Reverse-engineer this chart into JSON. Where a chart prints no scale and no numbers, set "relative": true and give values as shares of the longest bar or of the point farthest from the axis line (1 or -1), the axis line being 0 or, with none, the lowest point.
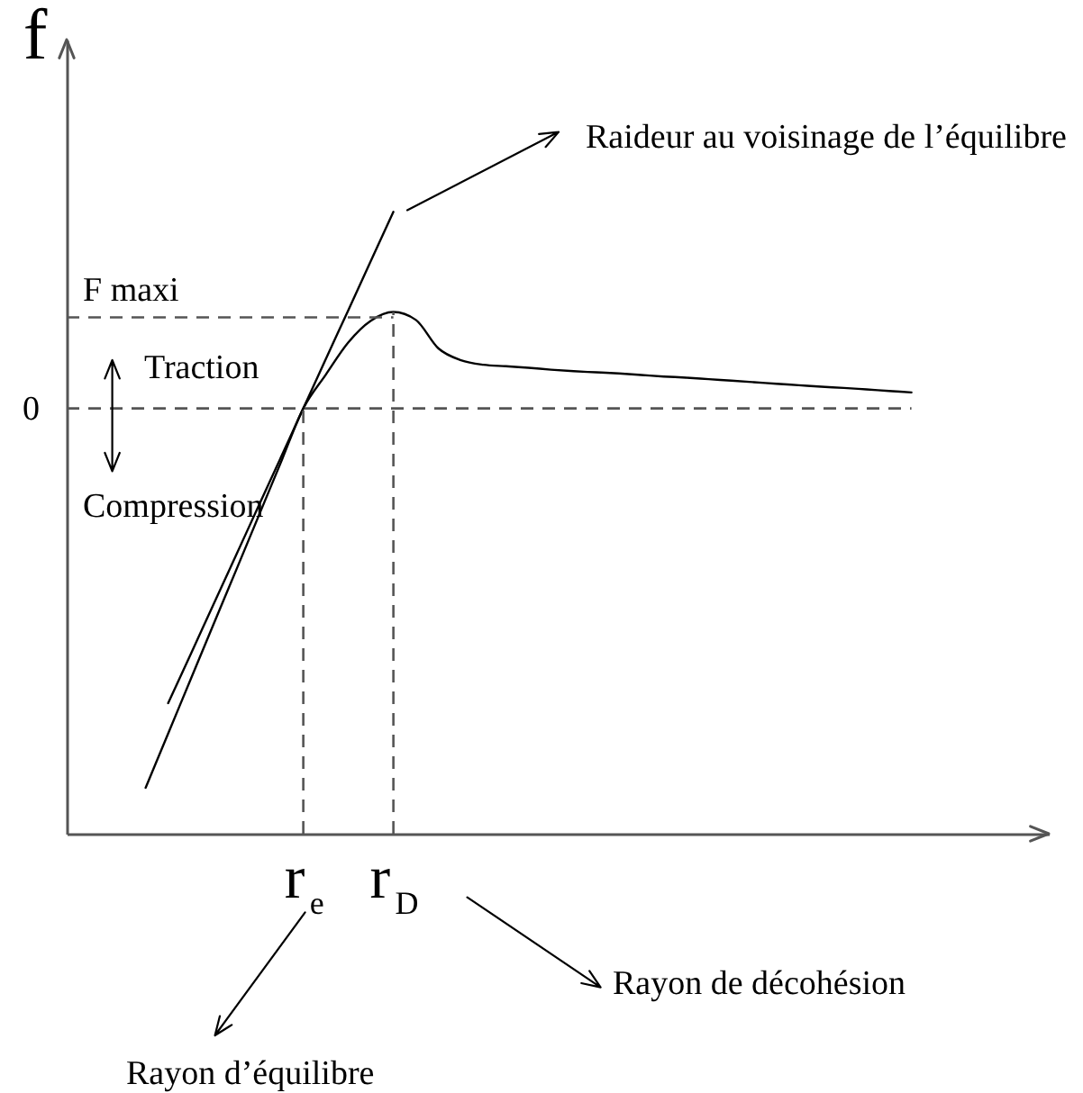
{
  "chart_data": {
    "type": "line",
    "relative": true,
    "ylabel": "f",
    "categories": [
      null,
      null,
      null,
      null,
      null,
      null,
      null,
      "r$_{e}$",
      null,
      null,
      null,
      "r$_{D}$",
      null,
      null,
      null,
      null,
      null,
      null,
      null,
      null,
      null,
      null,
      null,
      null,
      null,
      null,
      null,
      null,
      null,
      null,
      null,
      null,
      null,
      null,
      null
    ],
    "series": [
      {
        "color": "#000000",
        "values": [
          -1,
          -0.857,
          -0.714,
          -0.571,
          -0.429,
          -0.286,
          -0.143,
          0,
          0.089,
          0.174,
          0.231,
          0.254,
          0.233,
          0.158,
          0.127,
          0.115,
          0.111,
          0.107,
          0.102,
          0.098,
          0.095,
          0.092,
          0.088,
          0.084,
          0.081,
          0.077,
          0.073,
          0.069,
          0.065,
          0.061,
          0.057,
          0.054,
          0.05,
          0.046,
          0.042
        ]
      },
      {
        "color": "#000000",
        "values": [
          null,
          -0.777,
          -0.648,
          -0.518,
          -0.389,
          -0.259,
          -0.13,
          0,
          0.13,
          0.259,
          0.389,
          0.518,
          null,
          null,
          null,
          null,
          null,
          null,
          null,
          null,
          null,
          null,
          null,
          null,
          null,
          null,
          null,
          null,
          null,
          null,
          null,
          null,
          null,
          null,
          null
        ]
      }
    ],
    "ref_lines": [
      {
        "axis": "y",
        "value": 0,
        "label": "0",
        "color": "#555555",
        "line_style": "dashed"
      },
      {
        "axis": "y",
        "value": 0.24,
        "label": "F maxi",
        "color": "#555555",
        "line_style": "dashed"
      },
      {
        "axis": "x",
        "value": "r$_{e}$",
        "color": "#555555",
        "line_style": "dashed"
      },
      {
        "axis": "x",
        "value": "r$_{D}$",
        "color": "#555555",
        "line_style": "dashed"
      }
    ],
    "annotations": [
      "Raideur au voisinage de l’équilibre",
      "Traction",
      "Compression",
      "Rayon d’équilibre",
      "Rayon de décohésion"
    ]
  }
}
